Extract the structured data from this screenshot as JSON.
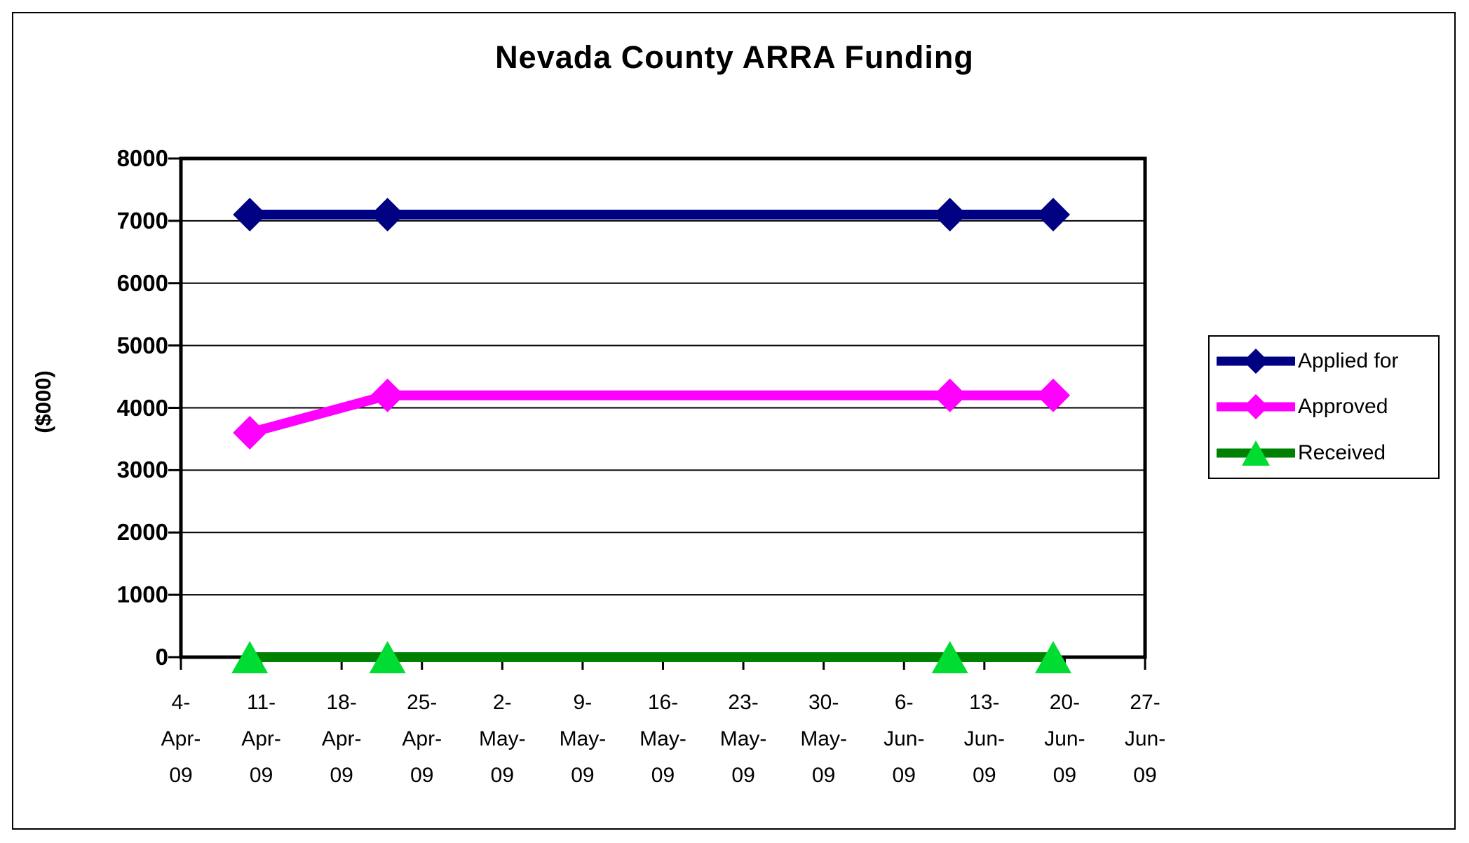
{
  "chart_data": {
    "type": "line",
    "title": "Nevada County ARRA Funding",
    "xlabel": "",
    "ylabel": "($000)",
    "ylim": [
      0,
      8000
    ],
    "ytick_step": 1000,
    "grid": "horizontal",
    "legend_position": "right",
    "x_axis": {
      "kind": "date",
      "start_day": 0,
      "end_day": 84,
      "tick_interval_days": 7,
      "tick_labels": [
        "4-Apr-09",
        "11-Apr-09",
        "18-Apr-09",
        "25-Apr-09",
        "2-May-09",
        "9-May-09",
        "16-May-09",
        "23-May-09",
        "30-May-09",
        "6-Jun-09",
        "13-Jun-09",
        "20-Jun-09",
        "27-Jun-09"
      ]
    },
    "point_dates": [
      "10-Apr-09",
      "22-Apr-09",
      "10-Jun-09",
      "19-Jun-09"
    ],
    "series": [
      {
        "name": "Applied for",
        "line_color": "#000082",
        "marker": "diamond",
        "marker_color": "#000082",
        "x_days": [
          6,
          18,
          67,
          76
        ],
        "values": [
          7100,
          7100,
          7100,
          7100
        ]
      },
      {
        "name": "Approved",
        "line_color": "#FF00FF",
        "marker": "diamond",
        "marker_color": "#FF00FF",
        "x_days": [
          6,
          18,
          67,
          76
        ],
        "values": [
          3600,
          4200,
          4200,
          4200
        ]
      },
      {
        "name": "Received",
        "line_color": "#008000",
        "marker": "triangle",
        "marker_color": "#00DC32",
        "x_days": [
          6,
          18,
          67,
          76
        ],
        "values": [
          0,
          0,
          0,
          0
        ]
      }
    ],
    "colors": {
      "axis": "#000000",
      "gridline": "#000000",
      "background": "#FFFFFF"
    }
  }
}
